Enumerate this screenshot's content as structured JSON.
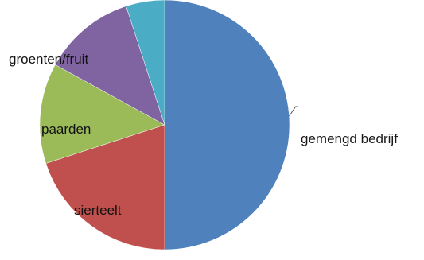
{
  "chart_data": {
    "type": "pie",
    "title": "",
    "slices": [
      {
        "label": "gemengd bedrijf",
        "value": 50,
        "color": "#4F81BD"
      },
      {
        "label": "sierteelt",
        "value": 20,
        "color": "#C0504D"
      },
      {
        "label": "paarden",
        "value": 13,
        "color": "#9BBB59"
      },
      {
        "label": "groenten/fruit",
        "value": 12,
        "color": "#8064A2"
      },
      {
        "label": "",
        "value": 5,
        "color": "#4BACC6"
      }
    ],
    "legend": "none",
    "labels": "slice labels"
  }
}
